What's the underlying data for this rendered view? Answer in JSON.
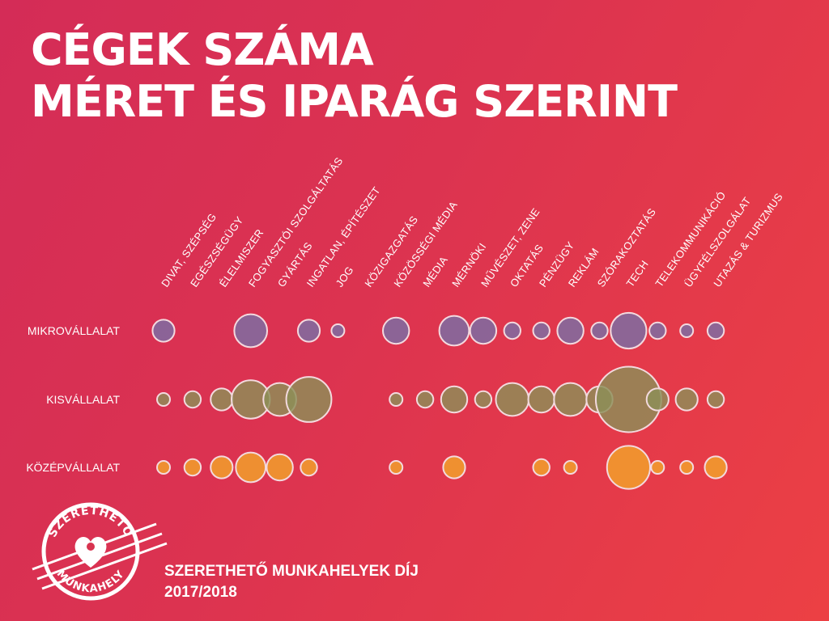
{
  "title": {
    "line1": "CÉGEK SZÁMA",
    "line2": "MÉRET ÉS IPARÁG SZERINT"
  },
  "footer": {
    "line1": "SZERETHETŐ MUNKAHELYEK DÍJ",
    "line2": "2017/2018"
  },
  "logo": {
    "top": "SZERETHETŐ",
    "bottom": "MUNKAHELY"
  },
  "colors": {
    "mikro": "#7a6fa6",
    "kis": "#8c8f58",
    "kozep": "#f2a32b",
    "outline": "#f3d9de"
  },
  "chart_data": {
    "type": "bubble",
    "title": "CÉGEK SZÁMA MÉRET ÉS IPARÁG SZERINT",
    "categories": [
      "DIVAT, SZÉPSÉG",
      "EGÉSZSÉGÜGY",
      "ÉLELMISZER",
      "FOGYASZTÓI SZOLGÁLTATÁS",
      "GYÁRTÁS",
      "INGATLAN, ÉPÍTÉSZET",
      "JOG",
      "KÖZIGAZGATÁS",
      "KÖZÖSSÉGI MÉDIA",
      "MÉDIA",
      "MÉRNÖKI",
      "MŰVÉSZET, ZENE",
      "OKTATÁS",
      "PÉNZÜGY",
      "REKLÁM",
      "SZÓRAKOZTATÁS",
      "TECH",
      "TELEKOMMUNIKÁCIÓ",
      "ÜGYFÉLSZOLGÁLAT",
      "UTAZÁS & TURIZMUS"
    ],
    "series": [
      {
        "name": "MIKROVÁLLALAT",
        "values": [
          2,
          0,
          0,
          5,
          0,
          2,
          0.3,
          0,
          3,
          0,
          4,
          3,
          1,
          1,
          3,
          1,
          6,
          1,
          0.4,
          1
        ]
      },
      {
        "name": "KISVÁLLALAT",
        "values": [
          0.3,
          1,
          2,
          7,
          5,
          10,
          0,
          0,
          0.3,
          1,
          3,
          1,
          5,
          3,
          5,
          3,
          22,
          2,
          2,
          1
        ]
      },
      {
        "name": "KÖZÉPVÁLLALAT",
        "values": [
          0.3,
          1,
          2,
          4,
          3,
          1,
          0,
          0,
          0.3,
          0,
          2,
          0,
          0,
          1,
          0.3,
          0,
          9,
          0.3,
          0.3,
          2
        ]
      }
    ]
  }
}
